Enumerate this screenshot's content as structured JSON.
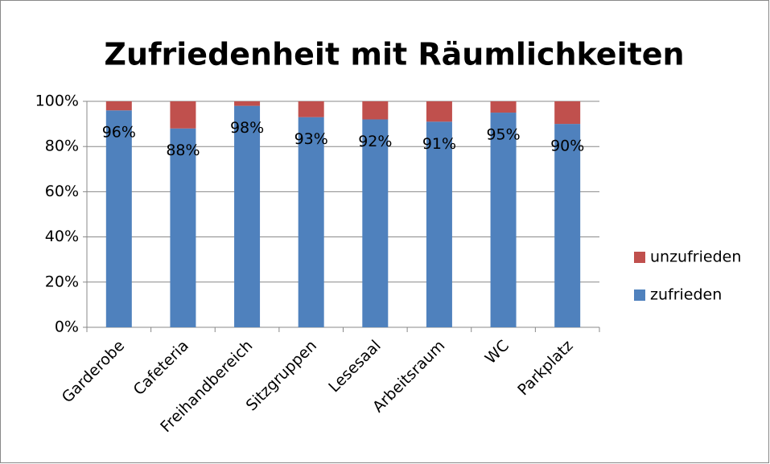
{
  "chart_data": {
    "type": "stacked_bar",
    "title": "Zufriedenheit mit Räumlichkeiten",
    "categories": [
      "Garderobe",
      "Cafeteria",
      "Freihandbereich",
      "Sitzgruppen",
      "Lesesaal",
      "Arbeitsraum",
      "WC",
      "Parkplatz"
    ],
    "series": [
      {
        "name": "zufrieden",
        "color": "#4f81bd",
        "values": [
          96,
          88,
          98,
          93,
          92,
          91,
          95,
          90
        ],
        "value_labels": [
          "96%",
          "88%",
          "98%",
          "93%",
          "92%",
          "91%",
          "95%",
          "90%"
        ]
      },
      {
        "name": "unzufrieden",
        "color": "#c0504d",
        "values": [
          4,
          12,
          2,
          7,
          8,
          9,
          5,
          10
        ]
      }
    ],
    "ylim": [
      0,
      100
    ],
    "yticks": [
      {
        "value": 0,
        "label": "0%"
      },
      {
        "value": 20,
        "label": "20%"
      },
      {
        "value": 40,
        "label": "40%"
      },
      {
        "value": 60,
        "label": "60%"
      },
      {
        "value": 80,
        "label": "80%"
      },
      {
        "value": 100,
        "label": "100%"
      }
    ],
    "grid": true,
    "legend": "right"
  }
}
